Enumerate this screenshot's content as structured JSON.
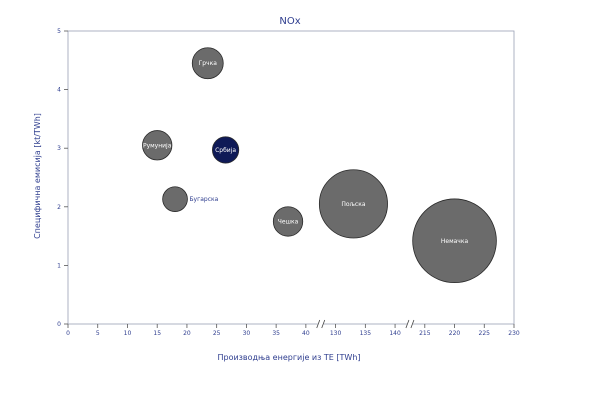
{
  "chart_data": {
    "type": "bubble",
    "title": "NOx",
    "xlabel": "Производња енергије из ТЕ [TWh]",
    "ylabel": "Специфична емисија [kt/TWh]",
    "ylim": [
      0,
      5
    ],
    "y_ticks": [
      "0",
      "1",
      "2",
      "3",
      "4",
      "5"
    ],
    "x_ticks": [
      "0",
      "5",
      "10",
      "15",
      "20",
      "25",
      "30",
      "35",
      "40",
      "130",
      "135",
      "140",
      "215",
      "220",
      "225",
      "230"
    ],
    "x_axis_breaks": [
      "40–130",
      "140–215"
    ],
    "grid": false,
    "points": [
      {
        "label": "Грчка",
        "x": 23.5,
        "y": 4.45,
        "size": 1.0,
        "color": "#6b6b6b",
        "label_position": "center"
      },
      {
        "label": "Румунија",
        "x": 15.0,
        "y": 3.05,
        "size": 0.95,
        "color": "#6b6b6b",
        "label_position": "center"
      },
      {
        "label": "Србија",
        "x": 26.5,
        "y": 2.97,
        "size": 0.85,
        "color": "#0f1a57",
        "label_position": "center"
      },
      {
        "label": "Бугарска",
        "x": 18.0,
        "y": 2.13,
        "size": 0.8,
        "color": "#6b6b6b",
        "label_position": "right"
      },
      {
        "label": "Чешка",
        "x": 37.0,
        "y": 1.75,
        "size": 0.95,
        "color": "#6b6b6b",
        "label_position": "center"
      },
      {
        "label": "Пољска",
        "x": 133.0,
        "y": 2.05,
        "size": 2.2,
        "color": "#6b6b6b",
        "label_position": "center"
      },
      {
        "label": "Немачка",
        "x": 220.0,
        "y": 1.42,
        "size": 2.7,
        "color": "#6b6b6b",
        "label_position": "center"
      }
    ]
  }
}
